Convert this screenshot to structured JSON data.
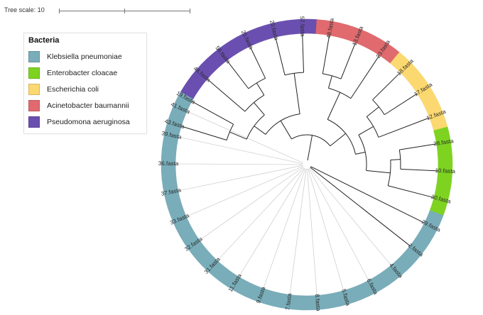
{
  "scale": {
    "label": "Tree scale: 10"
  },
  "legend": {
    "title": "Bacteria",
    "items": [
      {
        "label": "Klebsiella pneumoniae",
        "color": "#79adb9"
      },
      {
        "label": "Enterobacter cloacae",
        "color": "#7ed321"
      },
      {
        "label": "Escherichia coli",
        "color": "#fcd870"
      },
      {
        "label": "Acinetobacter baumannii",
        "color": "#e06a6e"
      },
      {
        "label": "Pseudomona aeruginosa",
        "color": "#6a4fb0"
      }
    ]
  },
  "tree": {
    "leaves": [
      {
        "label": "43.fasta",
        "group": 4
      },
      {
        "label": "19.fasta",
        "group": 4
      },
      {
        "label": "46.fasta",
        "group": 4
      },
      {
        "label": "56.fasta",
        "group": 4
      },
      {
        "label": "25.fasta",
        "group": 4
      },
      {
        "label": "20.fasta",
        "group": 4
      },
      {
        "label": "57.fasta",
        "group": 4
      },
      {
        "label": "48.fasta",
        "group": 3
      },
      {
        "label": "13.fasta",
        "group": 3
      },
      {
        "label": "23.fasta",
        "group": 3
      },
      {
        "label": "18.fasta",
        "group": 2
      },
      {
        "label": "17.fasta",
        "group": 2
      },
      {
        "label": "12.fasta",
        "group": 2
      },
      {
        "label": "28.fasta",
        "group": 1
      },
      {
        "label": "10.fasta",
        "group": 1
      },
      {
        "label": "30.fasta",
        "group": 1
      },
      {
        "label": "29.fasta",
        "group": 0
      },
      {
        "label": "2.fasta",
        "group": 0
      },
      {
        "label": "4.fasta",
        "group": 0
      },
      {
        "label": "6.fasta",
        "group": 0
      },
      {
        "label": "5.fasta",
        "group": 0
      },
      {
        "label": "8.fasta",
        "group": 0
      },
      {
        "label": "7.fasta",
        "group": 0
      },
      {
        "label": "9.fasta",
        "group": 0
      },
      {
        "label": "11.fasta",
        "group": 0
      },
      {
        "label": "31.fasta",
        "group": 0
      },
      {
        "label": "32.fasta",
        "group": 0
      },
      {
        "label": "33.fasta",
        "group": 0
      },
      {
        "label": "37.fasta",
        "group": 0
      },
      {
        "label": "36.fasta",
        "group": 0
      },
      {
        "label": "39.fasta",
        "group": 0
      },
      {
        "label": "41.fasta",
        "group": 0
      }
    ]
  }
}
